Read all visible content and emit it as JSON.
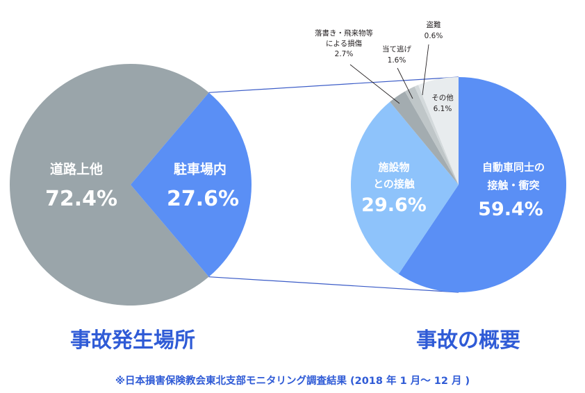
{
  "colors": {
    "gray": "#9aa5aa",
    "blue": "#5a8ff5",
    "light_blue": "#8ec3fb",
    "slate": "#a3acb0",
    "slate2": "#bfc6c8",
    "slate3": "#d3d9db",
    "pale": "#e8ecee",
    "connector": "#3a5bc7",
    "title_blue": "#2f5bd6"
  },
  "chart_data": [
    {
      "type": "pie",
      "title": "事故発生場所",
      "slices": [
        {
          "label": "道路上他",
          "value": 72.4,
          "value_label": "72.4%",
          "color": "#9aa5aa"
        },
        {
          "label": "駐車場内",
          "value": 27.6,
          "value_label": "27.6%",
          "color": "#5a8ff5"
        }
      ]
    },
    {
      "type": "pie",
      "title": "事故の概要",
      "slices": [
        {
          "label": "自動車同士の 接触・衝突",
          "line1": "自動車同士の",
          "line2": "接触・衝突",
          "value": 59.4,
          "value_label": "59.4%",
          "color": "#5a8ff5"
        },
        {
          "label": "施設物 との接触",
          "line1": "施設物",
          "line2": "との接触",
          "value": 29.6,
          "value_label": "29.6%",
          "color": "#8ec3fb"
        },
        {
          "label": "落書き・飛来物等 による損傷",
          "line1": "落書き・飛来物等",
          "line2": "による損傷",
          "value": 2.7,
          "value_label": "2.7%",
          "color": "#a3acb0"
        },
        {
          "label": "当て逃げ",
          "value": 1.6,
          "value_label": "1.6%",
          "color": "#bfc6c8"
        },
        {
          "label": "盗難",
          "value": 0.6,
          "value_label": "0.6%",
          "color": "#d3d9db"
        },
        {
          "label": "その他",
          "value": 6.1,
          "value_label": "6.1%",
          "color": "#e8ecee"
        }
      ]
    }
  ],
  "footnote": "※日本損害保険教会東北支部モニタリング調査結果 (2018 年 1 月〜 12 月 )"
}
